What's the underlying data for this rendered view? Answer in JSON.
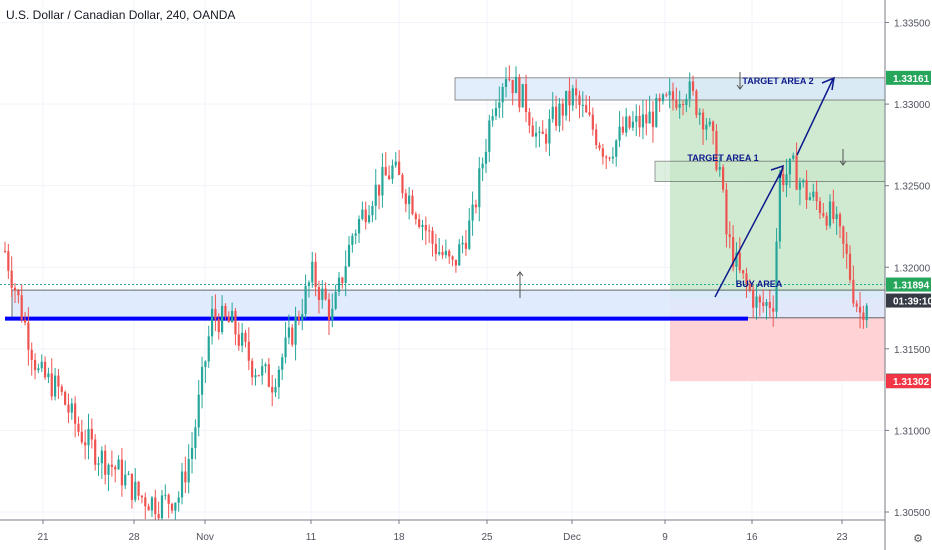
{
  "chart_title": "U.S. Dollar / Canadian Dollar, 240, OANDA",
  "colors": {
    "up": "#26a69a",
    "down": "#ef5350",
    "grid": "#f0f3fa",
    "axis_text": "#50535e",
    "target_box_fill": "#c8e6c9",
    "stop_box_fill": "#ffcdd2",
    "buy_zone_fill": "#ddebfd",
    "blue_line": "#0000ff",
    "annotation": "#0d1a8c",
    "price_green": "#26a65a",
    "price_red": "#f23645",
    "price_dark": "#363a45"
  },
  "annotations": {
    "target1": "TARGET AREA 1",
    "target2": "TARGET AREA 2",
    "buy": "BUY AREA"
  },
  "price_labels": {
    "target_price": "1.33161",
    "entry_price": "1.31894",
    "countdown": "01:39:10",
    "last_price": "1.31809",
    "stop_price": "1.31302"
  },
  "chart_data": {
    "type": "candlestick",
    "title": "U.S. Dollar / Canadian Dollar, 240, OANDA",
    "y_ticks": [
      1.335,
      1.33,
      1.325,
      1.32,
      1.315,
      1.31,
      1.305
    ],
    "x_tick_labels": [
      "21",
      "28",
      "Nov",
      "11",
      "18",
      "25",
      "Dec",
      "9",
      "16",
      "23"
    ],
    "ylim": [
      1.30267,
      1.33638
    ],
    "anchors": [
      [
        0,
        1.321
      ],
      [
        4,
        1.318
      ],
      [
        10,
        1.3135
      ],
      [
        16,
        1.3125
      ],
      [
        22,
        1.31
      ],
      [
        28,
        1.3085
      ],
      [
        34,
        1.3075
      ],
      [
        40,
        1.306
      ],
      [
        46,
        1.3055
      ],
      [
        52,
        1.306
      ],
      [
        56,
        1.309
      ],
      [
        62,
        1.317
      ],
      [
        68,
        1.3165
      ],
      [
        74,
        1.314
      ],
      [
        80,
        1.313
      ],
      [
        86,
        1.316
      ],
      [
        92,
        1.3195
      ],
      [
        98,
        1.317
      ],
      [
        104,
        1.322
      ],
      [
        110,
        1.3245
      ],
      [
        116,
        1.326
      ],
      [
        122,
        1.324
      ],
      [
        128,
        1.3215
      ],
      [
        134,
        1.32
      ],
      [
        140,
        1.323
      ],
      [
        146,
        1.33
      ],
      [
        150,
        1.332
      ],
      [
        156,
        1.33
      ],
      [
        160,
        1.3275
      ],
      [
        164,
        1.329
      ],
      [
        170,
        1.3305
      ],
      [
        176,
        1.3285
      ],
      [
        180,
        1.327
      ],
      [
        186,
        1.3285
      ],
      [
        192,
        1.329
      ],
      [
        198,
        1.33
      ],
      [
        204,
        1.331
      ],
      [
        210,
        1.329
      ],
      [
        214,
        1.326
      ],
      [
        216,
        1.322
      ],
      [
        220,
        1.3195
      ],
      [
        226,
        1.3175
      ],
      [
        230,
        1.318
      ],
      [
        232,
        1.3255
      ],
      [
        236,
        1.326
      ],
      [
        240,
        1.3245
      ],
      [
        244,
        1.3238
      ],
      [
        248,
        1.323
      ],
      [
        252,
        1.3205
      ],
      [
        254,
        1.3185
      ],
      [
        256,
        1.3172
      ],
      [
        258,
        1.3181
      ]
    ],
    "zones": {
      "resistance_box": [
        1.33025,
        1.33161
      ],
      "target1_box": [
        1.32525,
        1.3265
      ],
      "buy_zone_box": [
        1.3169,
        1.3186
      ],
      "support_line": 1.31685,
      "target_box": [
        1.31809,
        1.33161
      ],
      "stop_box": [
        1.31302,
        1.31809
      ],
      "entry_line": 1.31894
    },
    "grid": true
  }
}
